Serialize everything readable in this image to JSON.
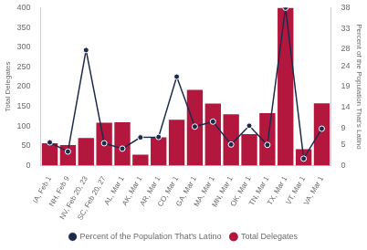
{
  "chart_data": {
    "type": "bar",
    "categories": [
      "IA, Feb 1",
      "NH, Feb 9",
      "NV, Feb 20, 23",
      "SC, Feb 20, 27",
      "AL, Mar 1",
      "AK, Mar 1",
      "AR, Mar 1",
      "CO, Mar 1",
      "GA, Mar 1",
      "MA, Mar 1",
      "MN, Mar 1",
      "OK, Mar 1",
      "TN, Mar 1",
      "TX, Mar 1",
      "VT, Mar 1",
      "VA, Mar 1"
    ],
    "series": [
      {
        "name": "Total Delegates",
        "type": "bar",
        "color": "#b3173d",
        "values": [
          57,
          52,
          70,
          109,
          110,
          28,
          72,
          116,
          192,
          157,
          130,
          80,
          133,
          400,
          42,
          158
        ]
      },
      {
        "name": "Percent of the Population That's Latino",
        "type": "line",
        "axis": "y2",
        "color": "#1c2b4b",
        "marker": "circle",
        "values": [
          5.6,
          3.4,
          27.8,
          5.4,
          4.1,
          6.8,
          6.9,
          21.4,
          9.4,
          10.6,
          5.1,
          9.6,
          5.0,
          38,
          1.7,
          8.9
        ]
      }
    ],
    "y_label": "Total Delegates",
    "y2_label": "Percent of the Population That's Latino",
    "ylim": [
      0,
      400
    ],
    "yticks": [
      0,
      50,
      100,
      150,
      200,
      250,
      300,
      350,
      400
    ],
    "y2lim": [
      0,
      38
    ],
    "y2ticks": [
      0,
      5,
      9,
      14,
      19,
      24,
      28,
      33,
      38
    ],
    "grid": false,
    "legend": "bottom"
  }
}
